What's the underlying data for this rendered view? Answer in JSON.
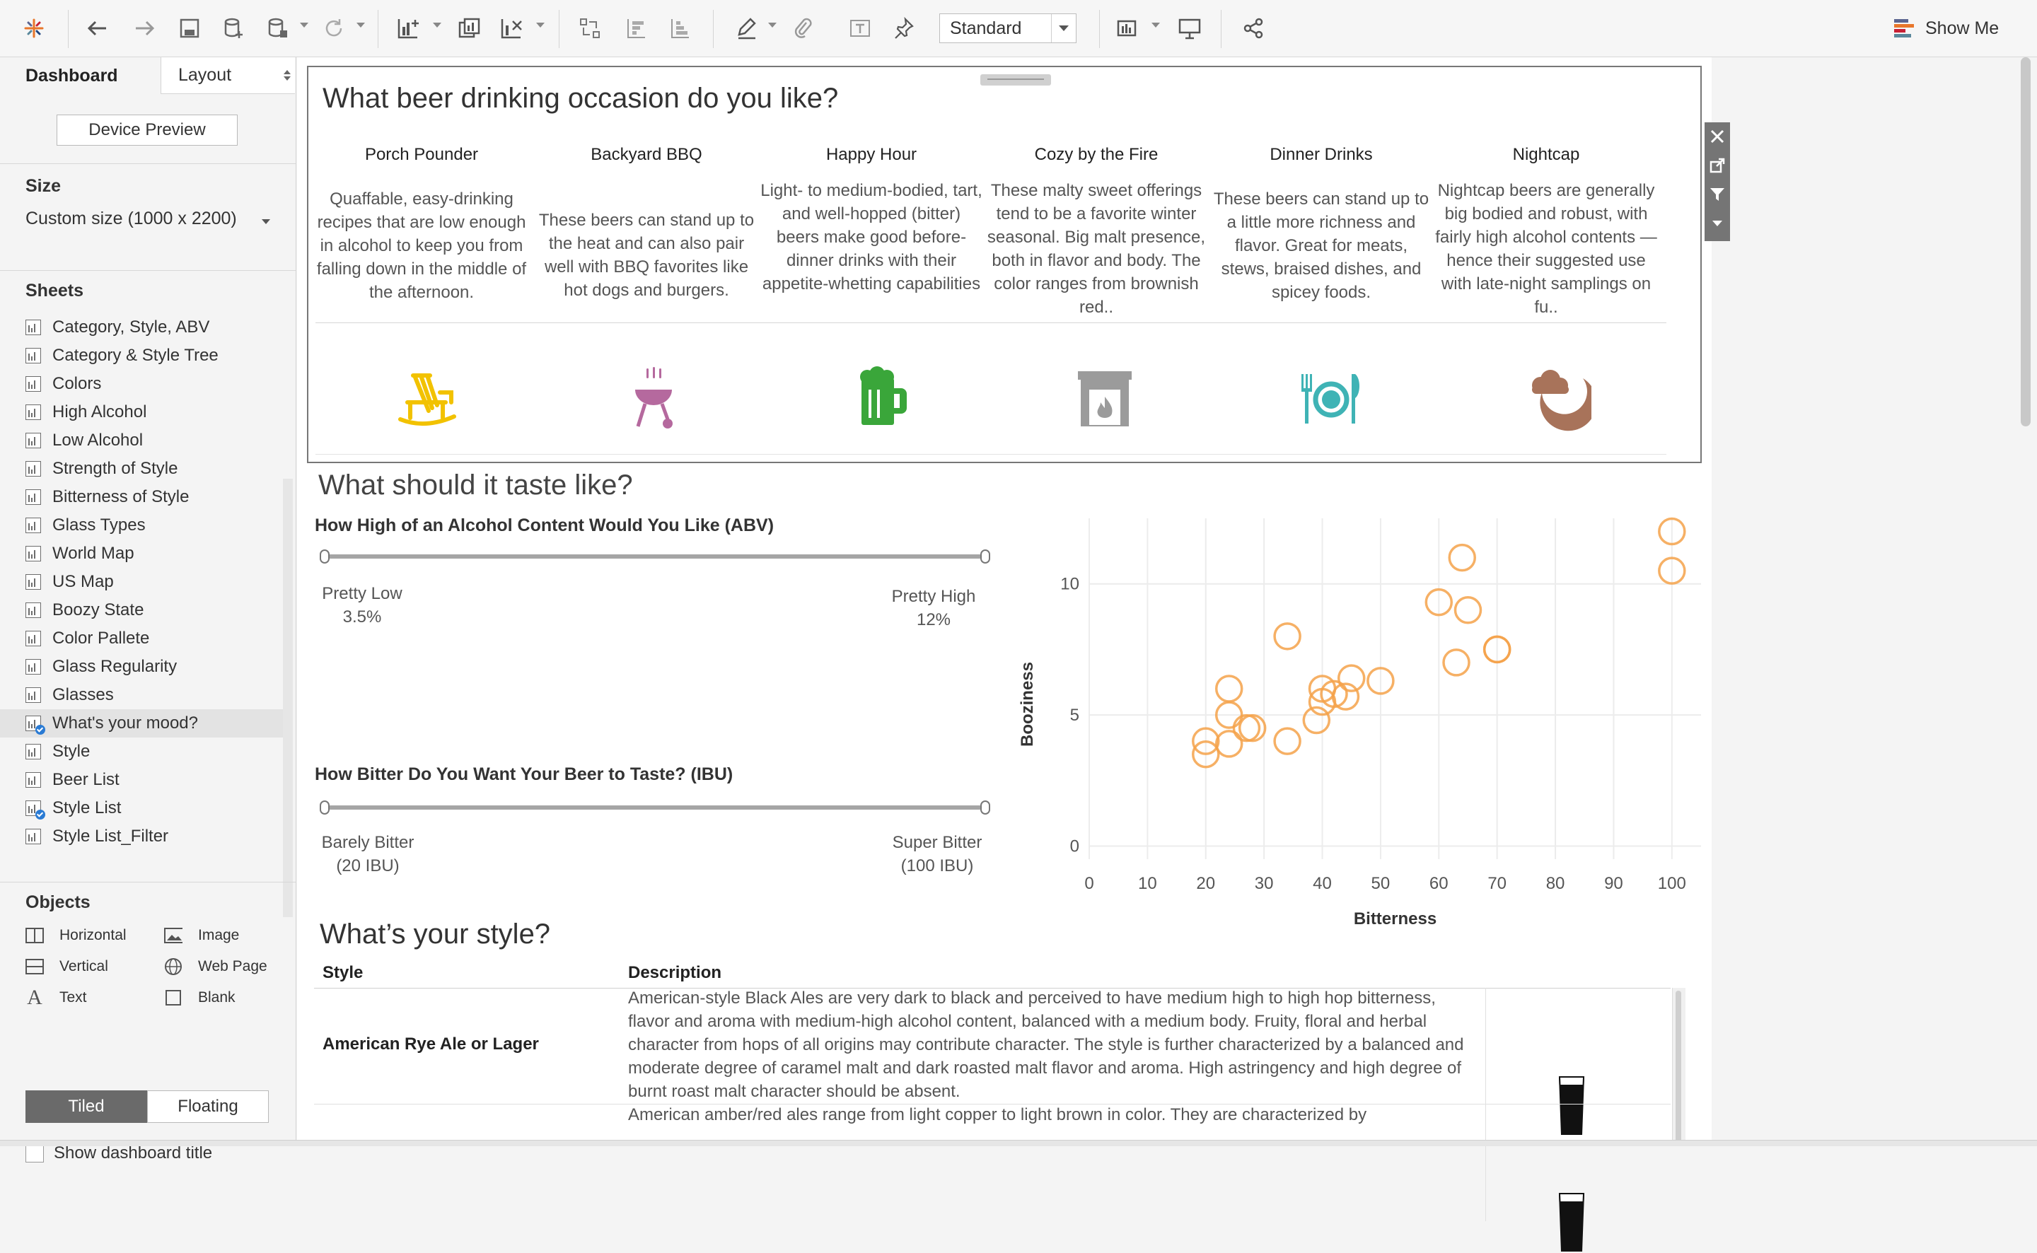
{
  "toolbar": {
    "standard_select": "Standard",
    "show_me": "Show Me"
  },
  "left_pane": {
    "tab_dashboard": "Dashboard",
    "tab_layout": "Layout",
    "device_preview": "Device Preview",
    "size_title": "Size",
    "size_value": "Custom size (1000 x 2200)",
    "sheets_title": "Sheets",
    "sheets": [
      {
        "label": "Category, Style, ABV"
      },
      {
        "label": "Category & Style Tree"
      },
      {
        "label": "Colors"
      },
      {
        "label": "High Alcohol"
      },
      {
        "label": "Low Alcohol"
      },
      {
        "label": "Strength of Style"
      },
      {
        "label": "Bitterness of Style"
      },
      {
        "label": "Glass Types"
      },
      {
        "label": "World Map"
      },
      {
        "label": "US Map"
      },
      {
        "label": "Boozy State"
      },
      {
        "label": "Color Pallete"
      },
      {
        "label": "Glass Regularity"
      },
      {
        "label": "Glasses"
      },
      {
        "label": "What's your mood?"
      },
      {
        "label": "Style"
      },
      {
        "label": "Beer List"
      },
      {
        "label": "Style List"
      },
      {
        "label": "Style List_Filter"
      }
    ],
    "objects_title": "Objects",
    "objects": {
      "horizontal": "Horizontal",
      "vertical": "Vertical",
      "text": "Text",
      "image": "Image",
      "web_page": "Web Page",
      "blank": "Blank"
    },
    "tiled": "Tiled",
    "floating": "Floating",
    "show_dashboard_title": "Show dashboard title"
  },
  "occasion": {
    "title": "What beer drinking occasion do you like?",
    "columns": [
      {
        "name": "Porch Pounder",
        "desc": "Quaffable, easy-drinking recipes that are low enough in alcohol to keep you from falling down in the middle of the afternoon.",
        "icon": "rocking-chair-icon",
        "color": "#f2c200"
      },
      {
        "name": "Backyard BBQ",
        "desc": "These beers can stand up to the heat and can also pair well with BBQ favorites like hot dogs and burgers.",
        "icon": "grill-icon",
        "color": "#b5699e"
      },
      {
        "name": "Happy Hour",
        "desc": "Light- to medium-bodied, tart, and well-hopped (bitter) beers make good before-dinner drinks with their appetite-whetting capabilities",
        "icon": "beer-mug-icon",
        "color": "#3aa63a"
      },
      {
        "name": "Cozy by the Fire",
        "desc": "These malty sweet offerings tend to be a favorite winter seasonal. Big malt presence, both in flavor and body. The color ranges from brownish red..",
        "icon": "fireplace-icon",
        "color": "#9b9b9b"
      },
      {
        "name": "Dinner Drinks",
        "desc": "These beers can stand up to a little more richness and flavor. Great for meats, stews, braised dishes, and spicey foods.",
        "icon": "plate-cutlery-icon",
        "color": "#3fb3b5"
      },
      {
        "name": "Nightcap",
        "desc": "Nightcap beers are generally big bodied and robust, with fairly high alcohol contents — hence their suggested use with late-night samplings on fu..",
        "icon": "moon-cloud-icon",
        "color": "#a8735a"
      }
    ]
  },
  "taste": {
    "title": "What should it taste like?",
    "abv": {
      "title": "How High of an Alcohol Content Would You Like (ABV)",
      "low_label": "Pretty Low",
      "low_value": "3.5%",
      "high_label": "Pretty High",
      "high_value": "12%"
    },
    "ibu": {
      "title": "How Bitter Do You Want Your Beer to Taste? (IBU)",
      "low_label": "Barely Bitter",
      "low_value": "(20 IBU)",
      "high_label": "Super Bitter",
      "high_value": "(100 IBU)"
    }
  },
  "chart_data": {
    "type": "scatter",
    "xlabel": "Bitterness",
    "ylabel": "Booziness",
    "xlim": [
      0,
      105
    ],
    "ylim": [
      -0.5,
      12.5
    ],
    "xticks": [
      0,
      10,
      20,
      30,
      40,
      50,
      60,
      70,
      80,
      90,
      100
    ],
    "yticks": [
      0,
      5,
      10
    ],
    "grid": true,
    "marker_color": "#f5a24a",
    "points": [
      {
        "x": 20,
        "y": 4.0
      },
      {
        "x": 20,
        "y": 3.5
      },
      {
        "x": 24,
        "y": 3.9
      },
      {
        "x": 24,
        "y": 5.0
      },
      {
        "x": 24,
        "y": 6.0
      },
      {
        "x": 27,
        "y": 4.5
      },
      {
        "x": 28,
        "y": 4.5
      },
      {
        "x": 34,
        "y": 8.0
      },
      {
        "x": 34,
        "y": 4.0
      },
      {
        "x": 39,
        "y": 4.8
      },
      {
        "x": 40,
        "y": 6.0
      },
      {
        "x": 40,
        "y": 5.5
      },
      {
        "x": 42,
        "y": 5.8
      },
      {
        "x": 44,
        "y": 5.7
      },
      {
        "x": 45,
        "y": 6.4
      },
      {
        "x": 50,
        "y": 6.3
      },
      {
        "x": 60,
        "y": 9.3
      },
      {
        "x": 63,
        "y": 7.0
      },
      {
        "x": 64,
        "y": 11.0
      },
      {
        "x": 65,
        "y": 9.0
      },
      {
        "x": 70,
        "y": 7.5
      },
      {
        "x": 70,
        "y": 7.5
      },
      {
        "x": 100,
        "y": 12.0
      },
      {
        "x": 100,
        "y": 10.5
      }
    ]
  },
  "style": {
    "title": "What’s your style?",
    "col_style": "Style",
    "col_desc": "Description",
    "rows": [
      {
        "name": "American Rye Ale or Lager",
        "desc": "American-style Black Ales are very dark to black and perceived to have medium high to high hop bitterness, flavor and aroma with medium-high alcohol content, balanced with a medium body. Fruity, floral and herbal character from hops of all origins may contribute character. The style is further characterized by a balanced and moderate degree of caramel malt and dark roasted malt flavor and aroma. High astringency and high degree of burnt roast malt character should be absent.",
        "glass_icon": "pint-glass-icon"
      },
      {
        "name": "",
        "desc": "American amber/red ales range from light copper to light brown in color. They are characterized by",
        "glass_icon": "pint-glass-icon"
      }
    ]
  }
}
